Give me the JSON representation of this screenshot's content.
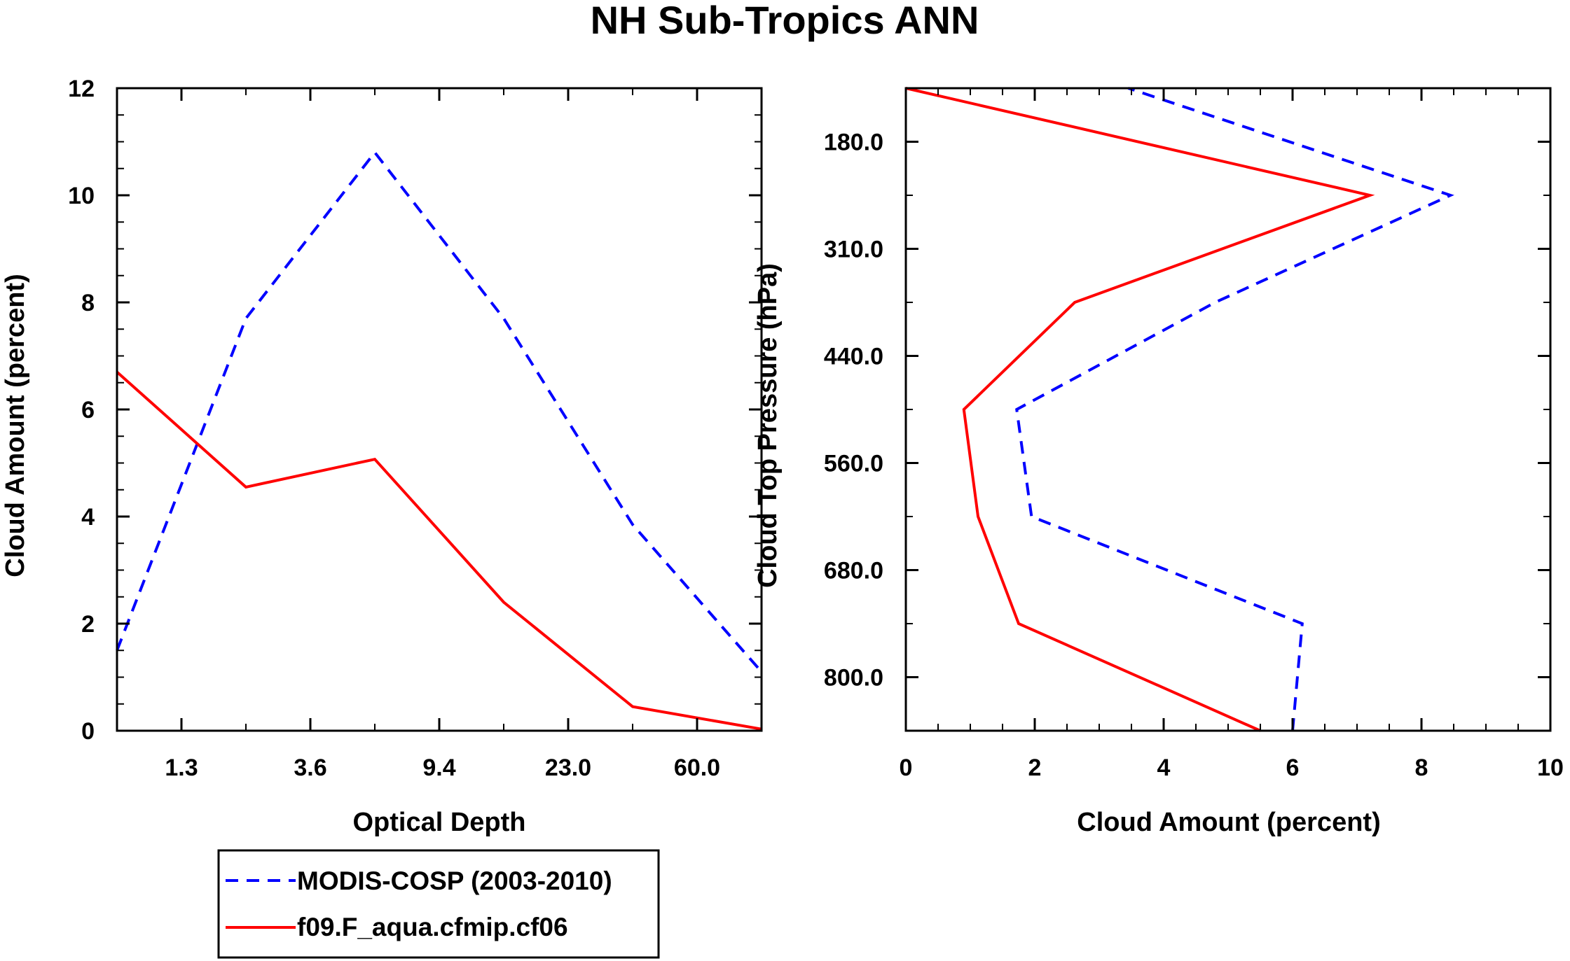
{
  "figure_title": "NH Sub-Tropics ANN",
  "colors": {
    "modis": "#0000ff",
    "model": "#ff0000",
    "axis": "#000000"
  },
  "legend": {
    "entries": [
      {
        "label": "MODIS-COSP (2003-2010)",
        "color": "#0000ff",
        "style": "dashed"
      },
      {
        "label": "f09.F_aqua.cfmip.cf06",
        "color": "#ff0000",
        "style": "solid"
      }
    ]
  },
  "chart_data": [
    {
      "type": "line",
      "xlabel": "Optical Depth",
      "ylabel": "Cloud Amount (percent)",
      "xlim": [
        0,
        10
      ],
      "ylim": [
        0,
        12
      ],
      "x_ticks": [
        1,
        3,
        5,
        7,
        9
      ],
      "x_tick_labels": [
        "1.3",
        "3.6",
        "9.4",
        "23.0",
        "60.0"
      ],
      "y_ticks": [
        0,
        2,
        4,
        6,
        8,
        10,
        12
      ],
      "y_tick_labels": [
        "0",
        "2",
        "4",
        "6",
        "8",
        "10",
        "12"
      ],
      "x": [
        0,
        2,
        4,
        6,
        8,
        10
      ],
      "series": [
        {
          "name": "MODIS-COSP (2003-2010)",
          "values": [
            1.5,
            7.7,
            10.8,
            7.7,
            3.85,
            1.1
          ]
        },
        {
          "name": "f09.F_aqua.cfmip.cf06",
          "values": [
            6.7,
            4.55,
            5.07,
            2.4,
            0.45,
            0.03
          ]
        }
      ]
    },
    {
      "type": "line",
      "xlabel": "Cloud Amount (percent)",
      "ylabel": "Cloud Top Pressure (hPa)",
      "xlim": [
        0,
        10
      ],
      "ylim": [
        0,
        12
      ],
      "x_ticks": [
        0,
        2,
        4,
        6,
        8,
        10
      ],
      "x_tick_labels": [
        "0",
        "2",
        "4",
        "6",
        "8",
        "10"
      ],
      "y_ticks": [
        1,
        3,
        5,
        7,
        9,
        11
      ],
      "y_tick_labels": [
        "800.0",
        "680.0",
        "560.0",
        "440.0",
        "310.0",
        "180.0"
      ],
      "y": [
        0,
        2,
        4,
        6,
        8,
        10,
        12
      ],
      "series": [
        {
          "name": "MODIS-COSP (2003-2010)",
          "values": [
            6.0,
            6.15,
            1.95,
            1.72,
            4.8,
            8.45,
            3.45
          ]
        },
        {
          "name": "f09.F_aqua.cfmip.cf06",
          "values": [
            5.5,
            1.75,
            1.12,
            0.9,
            2.62,
            7.2,
            0.0
          ]
        }
      ]
    }
  ]
}
